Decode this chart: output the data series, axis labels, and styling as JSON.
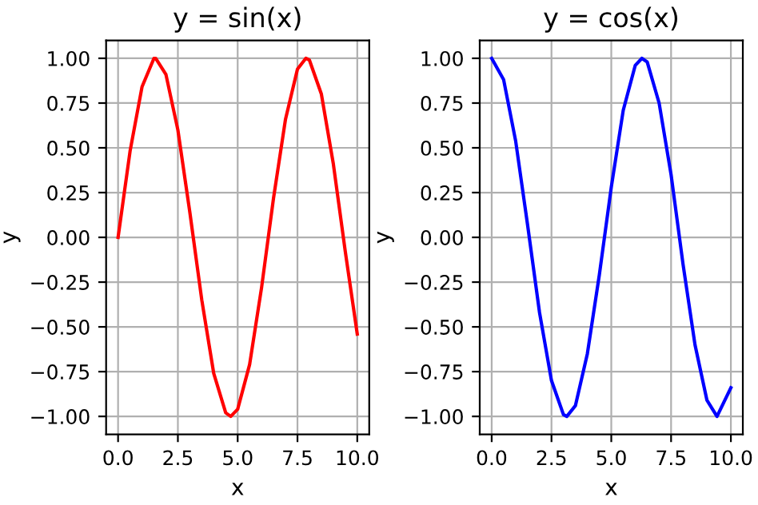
{
  "chart_data": [
    {
      "type": "line",
      "title": "y = sin(x)",
      "xlabel": "x",
      "ylabel": "y",
      "grid": true,
      "xlim": [
        -0.5,
        10.5
      ],
      "xticks": [
        {
          "value": 0,
          "label": "0.0"
        },
        {
          "value": 2.5,
          "label": "2.5"
        },
        {
          "value": 5,
          "label": "5.0"
        },
        {
          "value": 7.5,
          "label": "7.5"
        },
        {
          "value": 10,
          "label": "10.0"
        }
      ],
      "ylim": [
        -1.1,
        1.1
      ],
      "yticks": [
        {
          "value": -1,
          "label": "−1.00"
        },
        {
          "value": -0.75,
          "label": "−0.75"
        },
        {
          "value": -0.5,
          "label": "−0.50"
        },
        {
          "value": -0.25,
          "label": "−0.25"
        },
        {
          "value": 0,
          "label": "0.00"
        },
        {
          "value": 0.25,
          "label": "0.25"
        },
        {
          "value": 0.5,
          "label": "0.50"
        },
        {
          "value": 0.75,
          "label": "0.75"
        },
        {
          "value": 1,
          "label": "1.00"
        }
      ],
      "series": [
        {
          "color": "#ff0000",
          "x": [
            0,
            0.5,
            1,
            1.5,
            1.57,
            2,
            2.5,
            3,
            3.5,
            4,
            4.5,
            4.71,
            5,
            5.5,
            6,
            6.5,
            7,
            7.5,
            7.85,
            8,
            8.5,
            9,
            9.5,
            10
          ],
          "values": [
            0,
            0.48,
            0.84,
            1.0,
            1.0,
            0.91,
            0.6,
            0.14,
            -0.35,
            -0.76,
            -0.98,
            -1.0,
            -0.96,
            -0.71,
            -0.28,
            0.22,
            0.66,
            0.94,
            1.0,
            0.99,
            0.8,
            0.41,
            -0.08,
            -0.54
          ]
        }
      ]
    },
    {
      "type": "line",
      "title": "y = cos(x)",
      "xlabel": "x",
      "ylabel": "y",
      "grid": true,
      "xlim": [
        -0.5,
        10.5
      ],
      "xticks": [
        {
          "value": 0,
          "label": "0.0"
        },
        {
          "value": 2.5,
          "label": "2.5"
        },
        {
          "value": 5,
          "label": "5.0"
        },
        {
          "value": 7.5,
          "label": "7.5"
        },
        {
          "value": 10,
          "label": "10.0"
        }
      ],
      "ylim": [
        -1.1,
        1.1
      ],
      "yticks": [
        {
          "value": -1,
          "label": "−1.00"
        },
        {
          "value": -0.75,
          "label": "−0.75"
        },
        {
          "value": -0.5,
          "label": "−0.50"
        },
        {
          "value": -0.25,
          "label": "−0.25"
        },
        {
          "value": 0,
          "label": "0.00"
        },
        {
          "value": 0.25,
          "label": "0.25"
        },
        {
          "value": 0.5,
          "label": "0.50"
        },
        {
          "value": 0.75,
          "label": "0.75"
        },
        {
          "value": 1,
          "label": "1.00"
        }
      ],
      "series": [
        {
          "color": "#0000ff",
          "x": [
            0,
            0.5,
            1,
            1.5,
            2,
            2.5,
            3,
            3.14,
            3.5,
            4,
            4.5,
            5,
            5.5,
            6,
            6.28,
            6.5,
            7,
            7.5,
            8,
            8.5,
            9,
            9.42,
            10
          ],
          "values": [
            1.0,
            0.88,
            0.54,
            0.07,
            -0.42,
            -0.8,
            -0.99,
            -1.0,
            -0.94,
            -0.65,
            -0.21,
            0.28,
            0.71,
            0.96,
            1.0,
            0.98,
            0.75,
            0.35,
            -0.15,
            -0.6,
            -0.91,
            -1.0,
            -0.84
          ]
        }
      ]
    }
  ]
}
